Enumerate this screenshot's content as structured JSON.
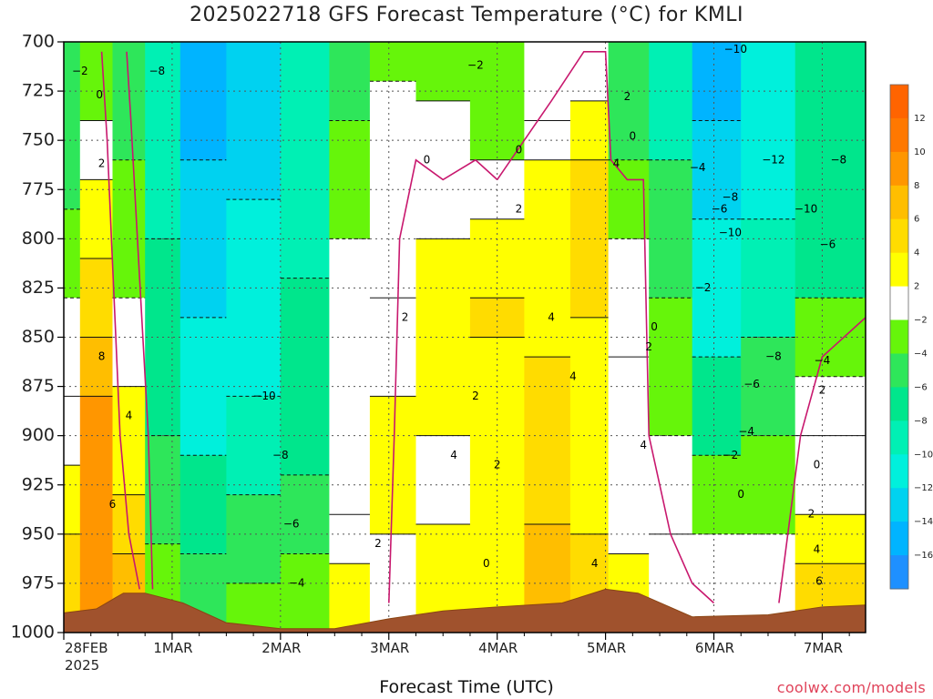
{
  "title": "2025022718 GFS Forecast Temperature (°C) for KMLI",
  "xlabel": "Forecast Time (UTC)",
  "credit": "coolwx.com/models",
  "colorbar": {
    "bands": [
      {
        "color": "#1e90ff"
      },
      {
        "color": "#00b4ff"
      },
      {
        "color": "#00d2f0"
      },
      {
        "color": "#00f0dc"
      },
      {
        "color": "#00f0b4"
      },
      {
        "color": "#00e68c"
      },
      {
        "color": "#2ee65a"
      },
      {
        "color": "#66f50a"
      },
      {
        "color": "#ffffff"
      },
      {
        "color": "#ffff00"
      },
      {
        "color": "#ffdc00"
      },
      {
        "color": "#ffbe00"
      },
      {
        "color": "#ff9600"
      },
      {
        "color": "#ff7800"
      },
      {
        "color": "#ff6400"
      }
    ],
    "labels": [
      "12",
      "10",
      "8",
      "6",
      "4",
      "2",
      "−2",
      "−4",
      "−6",
      "−8",
      "−10",
      "−12",
      "−14",
      "−16"
    ]
  },
  "chart_data": {
    "type": "heatmap",
    "title": "2025022718 GFS Forecast Temperature (°C) for KMLI",
    "xlabel": "Forecast Time (UTC)",
    "ylabel": "",
    "y_ticks": [
      "700",
      "725",
      "750",
      "775",
      "800",
      "825",
      "850",
      "875",
      "900",
      "925",
      "950",
      "975",
      "1000"
    ],
    "x_ticks": [
      {
        "label": "28FEB",
        "sublabel": "2025",
        "day": 0
      },
      {
        "label": "1MAR",
        "day": 1
      },
      {
        "label": "2MAR",
        "day": 2
      },
      {
        "label": "3MAR",
        "day": 3
      },
      {
        "label": "4MAR",
        "day": 4
      },
      {
        "label": "5MAR",
        "day": 5
      },
      {
        "label": "6MAR",
        "day": 6
      },
      {
        "label": "7MAR",
        "day": 7
      }
    ],
    "pressure_range_hpa": [
      700,
      1000
    ],
    "x_range_days": [
      0,
      7.4
    ],
    "contour_interval_c": 2,
    "zero_isotherm_color": "#c8186e",
    "grid": true,
    "columns": [
      {
        "day": 0.0,
        "levels": [
          {
            "top": 700,
            "t": -6
          },
          {
            "top": 785,
            "t": -4
          },
          {
            "top": 830,
            "t": -2
          },
          {
            "top": 880,
            "t": 1
          },
          {
            "top": 915,
            "t": 3
          },
          {
            "top": 950,
            "t": 5
          }
        ]
      },
      {
        "day": 0.3,
        "levels": [
          {
            "top": 700,
            "t": -3
          },
          {
            "top": 740,
            "t": 1
          },
          {
            "top": 770,
            "t": 3
          },
          {
            "top": 810,
            "t": 5
          },
          {
            "top": 850,
            "t": 7
          },
          {
            "top": 880,
            "t": 9
          }
        ]
      },
      {
        "day": 0.6,
        "levels": [
          {
            "top": 700,
            "t": -5
          },
          {
            "top": 760,
            "t": -3
          },
          {
            "top": 830,
            "t": -1
          },
          {
            "top": 875,
            "t": 3
          },
          {
            "top": 930,
            "t": 5
          },
          {
            "top": 960,
            "t": 7
          }
        ]
      },
      {
        "day": 0.9,
        "levels": [
          {
            "top": 700,
            "t": -9
          },
          {
            "top": 800,
            "t": -7
          },
          {
            "top": 900,
            "t": -5
          },
          {
            "top": 955,
            "t": -3
          }
        ]
      },
      {
        "day": 1.25,
        "levels": [
          {
            "top": 700,
            "t": -15
          },
          {
            "top": 760,
            "t": -13
          },
          {
            "top": 840,
            "t": -11
          },
          {
            "top": 910,
            "t": -7
          },
          {
            "top": 960,
            "t": -5
          }
        ]
      },
      {
        "day": 1.75,
        "levels": [
          {
            "top": 700,
            "t": -13
          },
          {
            "top": 780,
            "t": -11
          },
          {
            "top": 880,
            "t": -9
          },
          {
            "top": 930,
            "t": -5
          },
          {
            "top": 975,
            "t": -3
          }
        ]
      },
      {
        "day": 2.25,
        "levels": [
          {
            "top": 700,
            "t": -9
          },
          {
            "top": 820,
            "t": -7
          },
          {
            "top": 920,
            "t": -5
          },
          {
            "top": 960,
            "t": -3
          }
        ]
      },
      {
        "day": 2.65,
        "levels": [
          {
            "top": 700,
            "t": -5
          },
          {
            "top": 740,
            "t": -3
          },
          {
            "top": 800,
            "t": -1
          },
          {
            "top": 940,
            "t": 1
          },
          {
            "top": 965,
            "t": 3
          }
        ]
      },
      {
        "day": 3.0,
        "levels": [
          {
            "top": 700,
            "t": -3
          },
          {
            "top": 720,
            "t": -1
          },
          {
            "top": 830,
            "t": 1
          },
          {
            "top": 880,
            "t": 3
          },
          {
            "top": 950,
            "t": 1
          }
        ]
      },
      {
        "day": 3.5,
        "levels": [
          {
            "top": 700,
            "t": -3
          },
          {
            "top": 730,
            "t": 1
          },
          {
            "top": 800,
            "t": 3
          },
          {
            "top": 900,
            "t": 1
          },
          {
            "top": 945,
            "t": 3
          }
        ]
      },
      {
        "day": 4.0,
        "levels": [
          {
            "top": 700,
            "t": -3
          },
          {
            "top": 760,
            "t": 1
          },
          {
            "top": 790,
            "t": 3
          },
          {
            "top": 830,
            "t": 5
          },
          {
            "top": 850,
            "t": 3
          }
        ]
      },
      {
        "day": 4.5,
        "levels": [
          {
            "top": 700,
            "t": -1
          },
          {
            "top": 740,
            "t": 1
          },
          {
            "top": 760,
            "t": 3
          },
          {
            "top": 860,
            "t": 5
          },
          {
            "top": 945,
            "t": 7
          }
        ]
      },
      {
        "day": 4.85,
        "levels": [
          {
            "top": 700,
            "t": -1
          },
          {
            "top": 730,
            "t": 3
          },
          {
            "top": 760,
            "t": 5
          },
          {
            "top": 840,
            "t": 3
          },
          {
            "top": 950,
            "t": 5
          }
        ]
      },
      {
        "day": 5.2,
        "levels": [
          {
            "top": 700,
            "t": -5
          },
          {
            "top": 760,
            "t": -3
          },
          {
            "top": 800,
            "t": -1
          },
          {
            "top": 860,
            "t": 1
          },
          {
            "top": 960,
            "t": 3
          }
        ]
      },
      {
        "day": 5.6,
        "levels": [
          {
            "top": 700,
            "t": -9
          },
          {
            "top": 760,
            "t": -5
          },
          {
            "top": 830,
            "t": -3
          },
          {
            "top": 900,
            "t": -1
          },
          {
            "top": 950,
            "t": 1
          }
        ]
      },
      {
        "day": 6.0,
        "levels": [
          {
            "top": 700,
            "t": -15
          },
          {
            "top": 740,
            "t": -13
          },
          {
            "top": 790,
            "t": -11
          },
          {
            "top": 860,
            "t": -7
          },
          {
            "top": 910,
            "t": -3
          },
          {
            "top": 950,
            "t": -1
          }
        ]
      },
      {
        "day": 6.5,
        "levels": [
          {
            "top": 700,
            "t": -11
          },
          {
            "top": 790,
            "t": -9
          },
          {
            "top": 850,
            "t": -5
          },
          {
            "top": 900,
            "t": -3
          },
          {
            "top": 950,
            "t": -1
          }
        ]
      },
      {
        "day": 7.0,
        "levels": [
          {
            "top": 700,
            "t": -7
          },
          {
            "top": 830,
            "t": -3
          },
          {
            "top": 870,
            "t": -1
          },
          {
            "top": 900,
            "t": 1
          },
          {
            "top": 940,
            "t": 3
          },
          {
            "top": 965,
            "t": 5
          }
        ]
      }
    ],
    "terrain_surface_hpa": [
      {
        "day": 0.0,
        "p": 990
      },
      {
        "day": 0.3,
        "p": 988
      },
      {
        "day": 0.55,
        "p": 980
      },
      {
        "day": 0.75,
        "p": 980
      },
      {
        "day": 1.1,
        "p": 985
      },
      {
        "day": 1.5,
        "p": 995
      },
      {
        "day": 2.0,
        "p": 998
      },
      {
        "day": 2.5,
        "p": 998
      },
      {
        "day": 3.0,
        "p": 993
      },
      {
        "day": 3.5,
        "p": 989
      },
      {
        "day": 4.0,
        "p": 987
      },
      {
        "day": 4.6,
        "p": 985
      },
      {
        "day": 5.0,
        "p": 978
      },
      {
        "day": 5.3,
        "p": 980
      },
      {
        "day": 5.8,
        "p": 992
      },
      {
        "day": 6.5,
        "p": 991
      },
      {
        "day": 7.0,
        "p": 987
      },
      {
        "day": 7.4,
        "p": 986
      }
    ],
    "zero_isotherms": [
      [
        [
          0.35,
          705
        ],
        [
          0.4,
          750
        ],
        [
          0.44,
          800
        ],
        [
          0.48,
          850
        ],
        [
          0.52,
          900
        ],
        [
          0.6,
          950
        ],
        [
          0.7,
          978
        ]
      ],
      [
        [
          0.82,
          978
        ],
        [
          0.78,
          900
        ],
        [
          0.7,
          820
        ],
        [
          0.62,
          740
        ],
        [
          0.58,
          705
        ]
      ],
      [
        [
          3.0,
          985
        ],
        [
          3.05,
          900
        ],
        [
          3.1,
          800
        ],
        [
          3.25,
          760
        ],
        [
          3.5,
          770
        ],
        [
          3.8,
          760
        ],
        [
          4.0,
          770
        ]
      ],
      [
        [
          4.0,
          770
        ],
        [
          4.5,
          730
        ],
        [
          4.8,
          705
        ],
        [
          5.0,
          705
        ],
        [
          5.05,
          760
        ],
        [
          5.2,
          770
        ],
        [
          5.35,
          770
        ],
        [
          5.4,
          900
        ],
        [
          5.6,
          950
        ],
        [
          5.8,
          975
        ],
        [
          6.0,
          985
        ]
      ],
      [
        [
          6.6,
          985
        ],
        [
          6.8,
          900
        ],
        [
          7.0,
          860
        ],
        [
          7.4,
          840
        ]
      ]
    ],
    "contour_labels": [
      {
        "text": "−2",
        "day": 0.15,
        "p": 715
      },
      {
        "text": "0",
        "day": 0.33,
        "p": 727
      },
      {
        "text": "−8",
        "day": 0.86,
        "p": 715
      },
      {
        "text": "2",
        "day": 0.35,
        "p": 762
      },
      {
        "text": "8",
        "day": 0.35,
        "p": 860
      },
      {
        "text": "4",
        "day": 0.6,
        "p": 890
      },
      {
        "text": "6",
        "day": 0.45,
        "p": 935
      },
      {
        "text": "−10",
        "day": 1.85,
        "p": 880
      },
      {
        "text": "−8",
        "day": 2.0,
        "p": 910
      },
      {
        "text": "−6",
        "day": 2.1,
        "p": 945
      },
      {
        "text": "−4",
        "day": 2.15,
        "p": 975
      },
      {
        "text": "−2",
        "day": 3.8,
        "p": 712
      },
      {
        "text": "0",
        "day": 3.35,
        "p": 760
      },
      {
        "text": "0",
        "day": 4.2,
        "p": 755
      },
      {
        "text": "2",
        "day": 4.2,
        "p": 785
      },
      {
        "text": "2",
        "day": 3.15,
        "p": 840
      },
      {
        "text": "4",
        "day": 4.5,
        "p": 840
      },
      {
        "text": "2",
        "day": 3.8,
        "p": 880
      },
      {
        "text": "4",
        "day": 3.6,
        "p": 910
      },
      {
        "text": "2",
        "day": 4.0,
        "p": 915
      },
      {
        "text": "4",
        "day": 4.7,
        "p": 870
      },
      {
        "text": "2",
        "day": 2.9,
        "p": 955
      },
      {
        "text": "0",
        "day": 3.9,
        "p": 965
      },
      {
        "text": "2",
        "day": 5.2,
        "p": 728
      },
      {
        "text": "4",
        "day": 5.1,
        "p": 762
      },
      {
        "text": "0",
        "day": 5.25,
        "p": 748
      },
      {
        "text": "0",
        "day": 5.45,
        "p": 845
      },
      {
        "text": "2",
        "day": 5.4,
        "p": 855
      },
      {
        "text": "4",
        "day": 5.35,
        "p": 905
      },
      {
        "text": "4",
        "day": 4.9,
        "p": 965
      },
      {
        "text": "−10",
        "day": 6.2,
        "p": 704
      },
      {
        "text": "−4",
        "day": 5.85,
        "p": 764
      },
      {
        "text": "−8",
        "day": 6.15,
        "p": 779
      },
      {
        "text": "−6",
        "day": 6.05,
        "p": 785
      },
      {
        "text": "−12",
        "day": 6.55,
        "p": 760
      },
      {
        "text": "−10",
        "day": 6.85,
        "p": 785
      },
      {
        "text": "−10",
        "day": 6.15,
        "p": 797
      },
      {
        "text": "−8",
        "day": 7.15,
        "p": 760
      },
      {
        "text": "−6",
        "day": 7.05,
        "p": 803
      },
      {
        "text": "−2",
        "day": 5.9,
        "p": 825
      },
      {
        "text": "−4",
        "day": 7.0,
        "p": 862
      },
      {
        "text": "−8",
        "day": 6.55,
        "p": 860
      },
      {
        "text": "−6",
        "day": 6.35,
        "p": 874
      },
      {
        "text": "−4",
        "day": 6.3,
        "p": 898
      },
      {
        "text": "−2",
        "day": 6.15,
        "p": 910
      },
      {
        "text": "0",
        "day": 6.25,
        "p": 930
      },
      {
        "text": "2",
        "day": 7.0,
        "p": 877
      },
      {
        "text": "0",
        "day": 6.95,
        "p": 915
      },
      {
        "text": "2",
        "day": 6.9,
        "p": 940
      },
      {
        "text": "4",
        "day": 6.95,
        "p": 958
      },
      {
        "text": "6",
        "day": 6.97,
        "p": 974
      }
    ]
  }
}
